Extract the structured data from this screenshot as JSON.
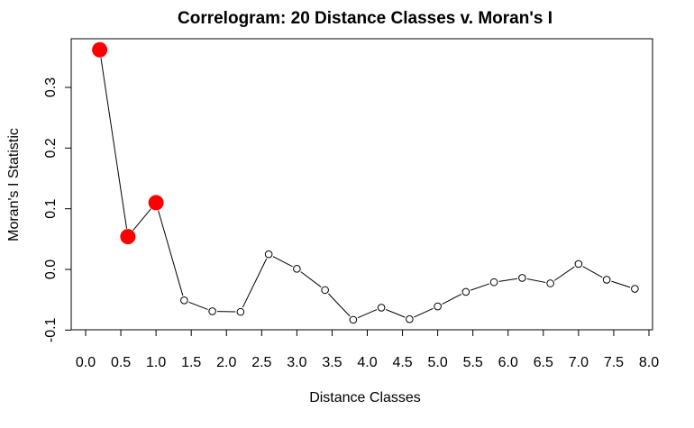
{
  "chart_data": {
    "type": "line",
    "title": "Correlogram: 20 Distance Classes v. Moran's I",
    "xlabel": "Distance Classes",
    "ylabel": "Moran's I Statistic",
    "xlim": [
      0.0,
      8.0
    ],
    "ylim": [
      -0.1,
      0.35
    ],
    "x_ticks": [
      "0.0",
      "0.5",
      "1.0",
      "1.5",
      "2.0",
      "2.5",
      "3.0",
      "3.5",
      "4.0",
      "4.5",
      "5.0",
      "5.5",
      "6.0",
      "6.5",
      "7.0",
      "7.5",
      "8.0"
    ],
    "y_ticks": [
      "-0.1",
      "0.0",
      "0.1",
      "0.2",
      "0.3"
    ],
    "grid": false,
    "series": [
      {
        "x": [
          0.2,
          0.6,
          1.0,
          1.4,
          1.8,
          2.2,
          2.6,
          3.0,
          3.4,
          3.8,
          4.2,
          4.6,
          5.0,
          5.4,
          5.8,
          6.2,
          6.6,
          7.0,
          7.4,
          7.8
        ],
        "values": [
          0.362,
          0.054,
          0.11,
          -0.051,
          -0.069,
          -0.07,
          0.025,
          0.001,
          -0.034,
          -0.083,
          -0.063,
          -0.082,
          -0.061,
          -0.037,
          -0.021,
          -0.014,
          -0.023,
          0.009,
          -0.017,
          -0.032
        ],
        "significant": [
          true,
          true,
          true,
          false,
          false,
          false,
          false,
          false,
          false,
          false,
          false,
          false,
          false,
          false,
          false,
          false,
          false,
          false,
          false,
          false
        ]
      }
    ],
    "colors": {
      "significant": "#ff0000",
      "line": "#000000",
      "marker_edge": "#000000"
    }
  }
}
